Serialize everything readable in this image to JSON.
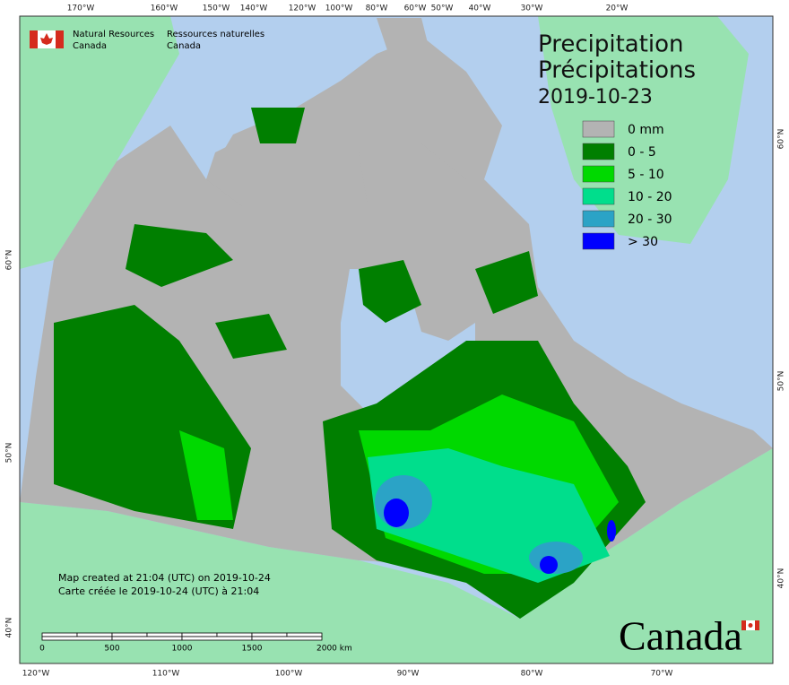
{
  "header": {
    "org_en": [
      "Natural Resources",
      "Canada"
    ],
    "org_fr": [
      "Ressources naturelles",
      "Canada"
    ]
  },
  "title": {
    "en": "Precipitation",
    "fr": "Précipitations",
    "date": "2019-10-23"
  },
  "legend": [
    {
      "label": "0 mm",
      "color": "#b3b3b3"
    },
    {
      "label": "0 - 5",
      "color": "#007f00"
    },
    {
      "label": "5 - 10",
      "color": "#00d900"
    },
    {
      "label": "10 - 20",
      "color": "#00de8c"
    },
    {
      "label": "20 - 30",
      "color": "#2ba3c6"
    },
    {
      "label": "> 30",
      "color": "#0000ff"
    }
  ],
  "graticule": {
    "top": [
      "170°W",
      "160°W",
      "150°W",
      "140°W",
      "120°W",
      "100°W",
      "80°W",
      "60°W",
      "50°W",
      "40°W",
      "30°W",
      "20°W"
    ],
    "bottom": [
      "120°W",
      "110°W",
      "100°W",
      "90°W",
      "80°W",
      "70°W"
    ],
    "left": [
      "60°N",
      "50°N",
      "40°N"
    ],
    "right": [
      "60°N",
      "50°N",
      "40°N"
    ]
  },
  "note": [
    "Map created at 21:04 (UTC) on 2019-10-24",
    "Carte créée le 2019-10-24 (UTC) à 21:04"
  ],
  "scale": [
    "0",
    "500",
    "1000",
    "1500",
    "2000 km"
  ],
  "wordmark": "Canada"
}
